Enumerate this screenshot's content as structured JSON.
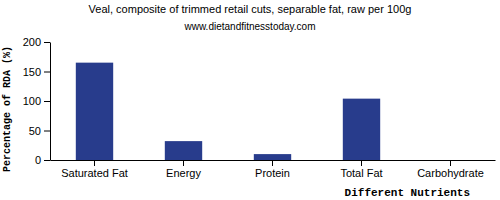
{
  "chart_data": {
    "type": "bar",
    "title": "Veal, composite of trimmed retail cuts, separable fat, raw per 100g",
    "subtitle": "www.dietandfitnesstoday.com",
    "x_label": "Different Nutrients",
    "y_label": "Percentage of RDA (%)",
    "categories": [
      "Saturated Fat",
      "Energy",
      "Protein",
      "Total Fat",
      "Carbohydrate"
    ],
    "values": [
      165,
      32,
      10,
      104,
      0
    ],
    "color": "#283c8c",
    "ylim": [
      0,
      200
    ],
    "yticks": [
      0,
      50,
      100,
      150,
      200
    ],
    "grid": false
  }
}
